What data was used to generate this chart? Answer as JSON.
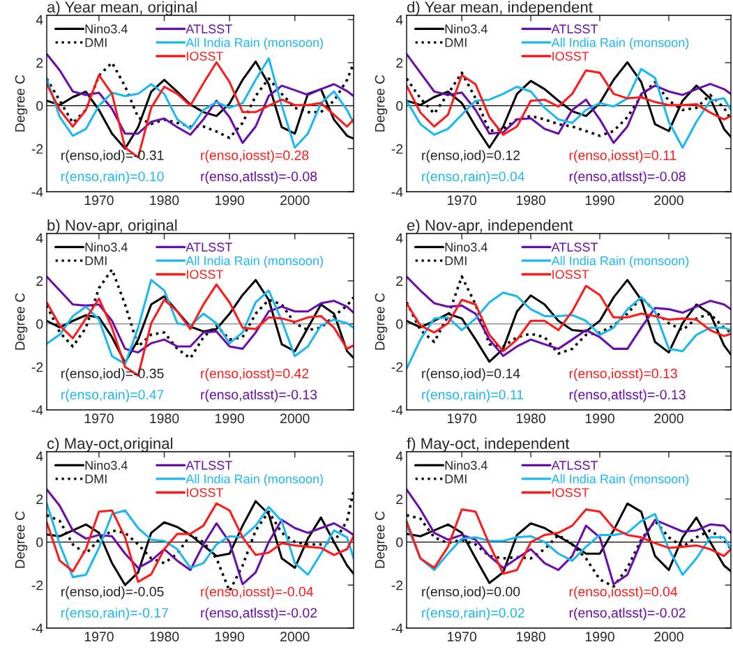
{
  "chart_data": [
    {
      "type": "line",
      "title": "a) Year mean, original",
      "ylabel": "Degree C",
      "xlim": [
        1962,
        2009
      ],
      "xticks": [
        1970,
        1980,
        1990,
        2000
      ],
      "ylim": [
        -4,
        4.2
      ],
      "yticks": [
        -4,
        -2,
        0,
        2,
        4
      ],
      "legend": "top left",
      "grid": false,
      "x": [
        1962,
        1964,
        1966,
        1968,
        1970,
        1972,
        1974,
        1976,
        1978,
        1980,
        1982,
        1984,
        1986,
        1988,
        1990,
        1992,
        1994,
        1996,
        1998,
        2000,
        2002,
        2004,
        2006,
        2008,
        2009
      ],
      "ref_lines": [
        {
          "axis": "y",
          "value": 0,
          "color": "#000000"
        }
      ],
      "annotations": [
        "r(enso,iod)=-0.31",
        "r(enso,iosst)=0.28",
        "r(enso,rain)=0.10",
        "r(enso,atlsst)=-0.08"
      ],
      "series": [
        {
          "name": "Nino3.4",
          "color": "#000000",
          "line_style": "solid",
          "values": [
            0.23,
            0.03,
            0.4,
            0.65,
            -0.2,
            -1.3,
            -2.0,
            -1.0,
            0.65,
            1.2,
            0.65,
            0.05,
            -0.3,
            -0.48,
            0.1,
            1.2,
            2.05,
            1.0,
            -1.0,
            -1.3,
            0.55,
            0.77,
            -0.65,
            -1.4,
            -1.53
          ]
        },
        {
          "name": "DMI",
          "color": "#000000",
          "line_style": "dotted",
          "values": [
            1.26,
            0.23,
            -0.8,
            -0.2,
            1.4,
            2.0,
            0.9,
            -0.55,
            -0.85,
            -0.65,
            -0.8,
            -0.97,
            -0.97,
            -1.2,
            -1.5,
            -0.8,
            0.45,
            1.26,
            0.55,
            -0.1,
            -0.3,
            -0.3,
            0.23,
            1.2,
            1.97
          ]
        },
        {
          "name": "ATLSST",
          "color": "#6a0dad",
          "line_style": "solid",
          "values": [
            2.4,
            1.64,
            0.66,
            0.5,
            0.6,
            -0.15,
            -1.3,
            -1.3,
            -0.75,
            -0.6,
            -1.0,
            -1.35,
            -0.64,
            0.23,
            -0.53,
            -1.73,
            -0.97,
            0.45,
            0.93,
            0.72,
            0.5,
            0.77,
            1.0,
            0.68,
            0.45
          ]
        },
        {
          "name": "All India Rain (monsoon)",
          "color": "#1ab8f0",
          "line_style": "solid",
          "values": [
            1.26,
            -0.53,
            -1.4,
            -1.08,
            0,
            0.6,
            0.45,
            0.55,
            1.0,
            0.55,
            -0.64,
            -1.08,
            -0.2,
            0.17,
            -0.1,
            0.12,
            1.2,
            2.2,
            0,
            -1.95,
            -1.3,
            0.12,
            0.66,
            -0.2,
            -0.8
          ]
        },
        {
          "name": "IOSST",
          "color": "#ff1a1a",
          "line_style": "solid",
          "values": [
            1.0,
            -0.2,
            -0.97,
            -0.2,
            1.42,
            0.55,
            -1.95,
            -2.4,
            -0.1,
            0.88,
            0.55,
            0,
            1.04,
            2.02,
            1.1,
            -0.3,
            -0.3,
            0,
            0.28,
            0.03,
            0.03,
            0.12,
            -0.42,
            -0.97,
            -0.64
          ]
        }
      ]
    },
    {
      "type": "line",
      "title": "d) Year mean, independent",
      "ylabel": "Degree C",
      "xlim": [
        1962,
        2009
      ],
      "xticks": [
        1970,
        1980,
        1990,
        2000
      ],
      "ylim": [
        -4,
        4.2
      ],
      "yticks": [
        -4,
        -2,
        0,
        2,
        4
      ],
      "legend": "top left",
      "grid": false,
      "x": [
        1962,
        1964,
        1966,
        1968,
        1970,
        1972,
        1974,
        1976,
        1978,
        1980,
        1982,
        1984,
        1986,
        1988,
        1990,
        1992,
        1994,
        1996,
        1998,
        2000,
        2002,
        2004,
        2006,
        2008,
        2009
      ],
      "ref_lines": [
        {
          "axis": "y",
          "value": 0,
          "color": "#000000"
        }
      ],
      "annotations": [
        "r(enso,iod)=0.12",
        "r(enso,iosst)=0.11",
        "r(enso,rain)=0.04",
        "r(enso,atlsst)=-0.08"
      ],
      "series": [
        {
          "name": "Nino3.4",
          "color": "#000000",
          "line_style": "solid",
          "values": [
            0.23,
            0.03,
            0.4,
            0.65,
            0.12,
            -0.97,
            -1.95,
            -0.97,
            0.55,
            1.15,
            0.77,
            0.23,
            -0.26,
            -0.48,
            0.12,
            1.2,
            2.02,
            1.1,
            -0.86,
            -1.18,
            0.23,
            0.93,
            0.34,
            -1.08,
            -1.46
          ]
        },
        {
          "name": "DMI",
          "color": "#000000",
          "line_style": "dotted",
          "values": [
            1.26,
            0.34,
            -0.37,
            0.55,
            1.53,
            0.34,
            -1.18,
            -1.08,
            -0.64,
            -0.48,
            -0.64,
            -0.86,
            -0.97,
            -1.18,
            -1.4,
            -1.18,
            -0.53,
            0.45,
            1.1,
            0.23,
            -0.2,
            -0.1,
            0.5,
            -0.1,
            -0.64
          ]
        },
        {
          "name": "ATLSST",
          "color": "#6a0dad",
          "line_style": "solid",
          "values": [
            2.4,
            1.53,
            0.66,
            0.5,
            0.61,
            -0.2,
            -1.3,
            -1.24,
            -0.64,
            -0.59,
            -1.08,
            -1.3,
            -0.2,
            0.28,
            -0.64,
            -1.73,
            -0.97,
            0.55,
            0.93,
            0.66,
            0.5,
            0.77,
            1.01,
            0.77,
            0.55
          ]
        },
        {
          "name": "All India Rain (monsoon)",
          "color": "#1ab8f0",
          "line_style": "solid",
          "values": [
            0.23,
            -0.86,
            -1.35,
            -1.08,
            -0.42,
            0.23,
            0.28,
            0.55,
            0.88,
            0.66,
            -0.1,
            -0.64,
            -0.8,
            -0.2,
            0.12,
            -0.04,
            0.34,
            1.7,
            1.3,
            -0.75,
            -1.95,
            -0.75,
            0.23,
            0.34,
            -0.2
          ]
        },
        {
          "name": "IOSST",
          "color": "#ff1a1a",
          "line_style": "solid",
          "values": [
            0.93,
            -0.32,
            -0.97,
            -0.42,
            1.42,
            0.99,
            -0.53,
            -1.35,
            -0.97,
            0.23,
            0.28,
            -0.04,
            0.55,
            1.64,
            1.53,
            0.55,
            0.34,
            0.39,
            0.17,
            0.03,
            0.03,
            0.07,
            -0.32,
            -0.64,
            -0.48
          ]
        }
      ]
    },
    {
      "type": "line",
      "title": "b) Nov-apr, original",
      "ylabel": "Degree C",
      "xlim": [
        1962,
        2009
      ],
      "xticks": [
        1970,
        1980,
        1990,
        2000
      ],
      "ylim": [
        -4,
        4.2
      ],
      "yticks": [
        -4,
        -2,
        0,
        2,
        4
      ],
      "legend": "top left",
      "grid": false,
      "x": [
        1962,
        1964,
        1966,
        1968,
        1970,
        1972,
        1974,
        1976,
        1978,
        1980,
        1982,
        1984,
        1986,
        1988,
        1990,
        1992,
        1994,
        1996,
        1998,
        2000,
        2002,
        2004,
        2006,
        2008,
        2009
      ],
      "ref_lines": [
        {
          "axis": "y",
          "value": 0,
          "color": "#808080"
        }
      ],
      "annotations": [
        "r(enso,iod)=-0.35",
        "r(enso,iosst)=0.42",
        "r(enso,rain)=0.47",
        "r(enso,atlsst)=-0.13"
      ],
      "series": [
        {
          "name": "Nino3.4",
          "color": "#000000",
          "line_style": "solid",
          "values": [
            0.14,
            -0.16,
            0.14,
            0.4,
            0.3,
            -0.62,
            -1.8,
            -0.73,
            0.9,
            1.28,
            0.58,
            -0.13,
            -0.35,
            -0.24,
            0.47,
            1.34,
            2.04,
            1.12,
            -0.95,
            -1.27,
            -0.18,
            0.9,
            0.47,
            -1.27,
            -1.58
          ]
        },
        {
          "name": "DMI",
          "color": "#000000",
          "line_style": "dotted",
          "values": [
            0.85,
            -0.4,
            -1.05,
            -0.18,
            1.66,
            2.53,
            0.9,
            -1.05,
            -0.5,
            -0.4,
            -1.16,
            -1.6,
            -0.62,
            -0.08,
            -0.73,
            -0.62,
            0.47,
            1.12,
            0.9,
            0.03,
            -0.29,
            -0.18,
            0.36,
            0.85,
            1.23
          ]
        },
        {
          "name": "ATLSST",
          "color": "#6a0dad",
          "line_style": "solid",
          "values": [
            2.2,
            1.55,
            0.9,
            0.85,
            0.9,
            0.14,
            -1.16,
            -1.33,
            -0.9,
            -0.73,
            -1.05,
            -1.05,
            -0.4,
            -0.35,
            -1.05,
            -1.16,
            -0.4,
            0.58,
            0.8,
            0.58,
            0.58,
            0.96,
            1.07,
            0.8,
            0.52
          ]
        },
        {
          "name": "All India Rain (monsoon)",
          "color": "#1ab8f0",
          "line_style": "solid",
          "values": [
            -0.92,
            -0.5,
            0.36,
            0.8,
            0.2,
            -1.5,
            -1.87,
            -0.18,
            2.04,
            1.55,
            0.03,
            -0.08,
            0.47,
            0.03,
            -0.9,
            -0.4,
            1.0,
            1.55,
            0.14,
            -1.5,
            -1.05,
            -0.08,
            0.2,
            0.03,
            -0.18
          ]
        },
        {
          "name": "IOSST",
          "color": "#ff1a1a",
          "line_style": "solid",
          "values": [
            1.0,
            -0.08,
            -0.67,
            0.25,
            1.17,
            -0.18,
            -2.0,
            -2.4,
            0.03,
            1.12,
            0.58,
            -0.24,
            0.9,
            1.83,
            1.0,
            -0.18,
            -0.24,
            0.3,
            0.25,
            0.09,
            0.3,
            0.36,
            -0.18,
            -1.16,
            -1.0
          ]
        }
      ]
    },
    {
      "type": "line",
      "title": "e) Nov-apr, independent",
      "ylabel": "Degree C",
      "xlim": [
        1962,
        2009
      ],
      "xticks": [
        1970,
        1980,
        1990,
        2000
      ],
      "ylim": [
        -4,
        4.2
      ],
      "yticks": [
        -4,
        -2,
        0,
        2,
        4
      ],
      "legend": "top left",
      "grid": false,
      "x": [
        1962,
        1964,
        1966,
        1968,
        1970,
        1972,
        1974,
        1976,
        1978,
        1980,
        1982,
        1984,
        1986,
        1988,
        1990,
        1992,
        1994,
        1996,
        1998,
        2000,
        2002,
        2004,
        2006,
        2008,
        2009
      ],
      "ref_lines": [
        {
          "axis": "y",
          "value": 0,
          "color": "#808080"
        }
      ],
      "annotations": [
        "r(enso,iod)=0.14",
        "r(enso,iosst)=0.13",
        "r(enso,rain)=0.11",
        "r(enso,atlsst)=-0.13"
      ],
      "series": [
        {
          "name": "Nino3.4",
          "color": "#000000",
          "line_style": "solid",
          "values": [
            0.14,
            -0.16,
            0.14,
            0.47,
            0.25,
            -0.73,
            -1.76,
            -1.16,
            0.58,
            1.32,
            0.9,
            0.14,
            -0.29,
            -0.35,
            0.14,
            1.23,
            2.04,
            1.12,
            -0.84,
            -1.33,
            0.03,
            0.9,
            0.47,
            -1.0,
            -1.43
          ]
        },
        {
          "name": "DMI",
          "color": "#000000",
          "line_style": "dotted",
          "values": [
            1.0,
            -0.29,
            -0.84,
            0.36,
            2.2,
            0.9,
            -0.95,
            -1.05,
            -0.62,
            -0.46,
            -0.62,
            -1.38,
            -1.16,
            -0.51,
            -0.4,
            -0.08,
            0.47,
            1.23,
            0.58,
            0.03,
            -0.29,
            0.25,
            0.47,
            -0.18,
            -0.4
          ]
        },
        {
          "name": "ATLSST",
          "color": "#6a0dad",
          "line_style": "solid",
          "values": [
            2.2,
            1.55,
            0.96,
            0.8,
            0.85,
            0.47,
            -0.73,
            -1.49,
            -1.05,
            -0.73,
            -0.95,
            -1.16,
            -0.73,
            -0.29,
            -0.62,
            -1.16,
            -1.16,
            -0.18,
            0.74,
            0.68,
            0.52,
            0.8,
            1.07,
            0.9,
            0.68
          ]
        },
        {
          "name": "All India Rain (monsoon)",
          "color": "#1ab8f0",
          "line_style": "solid",
          "values": [
            -2.09,
            -0.73,
            0.25,
            0.3,
            -0.29,
            0.25,
            1.0,
            1.45,
            1.28,
            0.68,
            0.36,
            0.36,
            0.41,
            0.14,
            -0.51,
            -0.18,
            0.68,
            1.23,
            0.58,
            -1.16,
            -1.27,
            -0.51,
            -0.18,
            -0.18,
            -0.29
          ]
        },
        {
          "name": "IOSST",
          "color": "#ff1a1a",
          "line_style": "solid",
          "values": [
            0.96,
            -0.08,
            -0.4,
            0.03,
            1.12,
            0.9,
            -0.51,
            -1.27,
            -0.73,
            0.14,
            0.14,
            -0.29,
            0.58,
            1.77,
            1.34,
            0.3,
            0.3,
            0.47,
            0.36,
            0.2,
            0.25,
            0.2,
            -0.29,
            -0.57,
            -0.46
          ]
        }
      ]
    },
    {
      "type": "line",
      "title": "c) May-oct,original",
      "ylabel": "Degree C",
      "xlim": [
        1962,
        2009
      ],
      "xticks": [
        1970,
        1980,
        1990,
        2000
      ],
      "ylim": [
        -4,
        4.2
      ],
      "yticks": [
        -4,
        -2,
        0,
        2,
        4
      ],
      "legend": "top left",
      "grid": false,
      "x": [
        1962,
        1964,
        1966,
        1968,
        1970,
        1972,
        1974,
        1976,
        1978,
        1980,
        1982,
        1984,
        1986,
        1988,
        1990,
        1992,
        1994,
        1996,
        1998,
        2000,
        2002,
        2004,
        2006,
        2008,
        2009
      ],
      "ref_lines": [
        {
          "axis": "y",
          "value": 0,
          "color": "#000000"
        }
      ],
      "annotations": [
        "r(enso,iod)=-0.05",
        "r(enso,iosst)=-0.04",
        "r(enso,rain)=-0.17",
        "r(enso,atlsst)=-0.02"
      ],
      "series": [
        {
          "name": "Nino3.4",
          "color": "#000000",
          "line_style": "solid",
          "values": [
            0.35,
            0.27,
            0.54,
            0.82,
            0.43,
            -0.98,
            -2.0,
            -1.41,
            0.43,
            0.92,
            0.7,
            0.33,
            -0.16,
            -0.65,
            -0.54,
            0.76,
            1.9,
            1.3,
            -0.76,
            -1.2,
            0.16,
            1.14,
            0,
            -1.09,
            -1.47
          ]
        },
        {
          "name": "DMI",
          "color": "#000000",
          "line_style": "dotted",
          "values": [
            1.25,
            0.98,
            -0.11,
            -0.54,
            0.11,
            0.54,
            0.43,
            -0.11,
            -0.76,
            -0.98,
            -0.54,
            0.33,
            0,
            -0.76,
            -2.28,
            -1.09,
            0.54,
            1.41,
            0.43,
            0,
            -0.11,
            -0.11,
            0,
            0.98,
            2.39
          ]
        },
        {
          "name": "ATLSST",
          "color": "#6a0dad",
          "line_style": "solid",
          "values": [
            2.45,
            1.68,
            0.54,
            0.16,
            0.33,
            0.27,
            -0.54,
            -1.2,
            -0.87,
            -0.33,
            -0.87,
            -1.3,
            -0.11,
            0.87,
            0,
            -1.96,
            -1.41,
            0,
            1.03,
            0.65,
            0.43,
            0.65,
            0.87,
            0.54,
            0.33
          ]
        },
        {
          "name": "All India Rain (monsoon)",
          "color": "#1ab8f0",
          "line_style": "solid",
          "values": [
            1.8,
            -0.11,
            -1.63,
            -1.52,
            -0.27,
            1.3,
            1.47,
            0.65,
            0.11,
            0.05,
            -0.33,
            -1.2,
            -0.98,
            -0.11,
            0.27,
            0.22,
            0.76,
            1.63,
            0.98,
            -0.98,
            -1.52,
            -0.54,
            0.54,
            0.22,
            -0.76
          ]
        },
        {
          "name": "IOSST",
          "color": "#ff1a1a",
          "line_style": "solid",
          "values": [
            0.92,
            -0.87,
            -1.36,
            -0.33,
            1.41,
            1.47,
            0.22,
            -1.85,
            -1.5,
            -0.33,
            0.38,
            0.38,
            0.76,
            1.8,
            1.47,
            0.22,
            -0.6,
            -0.49,
            -0.05,
            -0.16,
            -0.22,
            -0.27,
            -0.6,
            -0.33,
            0.27
          ]
        }
      ]
    },
    {
      "type": "line",
      "title": "f) May-oct, independent",
      "ylabel": "Degree C",
      "xlim": [
        1962,
        2009
      ],
      "xticks": [
        1970,
        1980,
        1990,
        2000
      ],
      "ylim": [
        -4,
        4.2
      ],
      "yticks": [
        -4,
        -2,
        0,
        2,
        4
      ],
      "legend": "top left",
      "grid": false,
      "x": [
        1962,
        1964,
        1966,
        1968,
        1970,
        1972,
        1974,
        1976,
        1978,
        1980,
        1982,
        1984,
        1986,
        1988,
        1990,
        1992,
        1994,
        1996,
        1998,
        2000,
        2002,
        2004,
        2006,
        2008,
        2009
      ],
      "ref_lines": [
        {
          "axis": "y",
          "value": 0,
          "color": "#000000"
        }
      ],
      "annotations": [
        "r(enso,iod)=0.00",
        "r(enso,iosst)=0.04",
        "r(enso,rain)=0.02",
        "r(enso,atlsst)=-0.02"
      ],
      "series": [
        {
          "name": "Nino3.4",
          "color": "#000000",
          "line_style": "solid",
          "values": [
            0.38,
            0.27,
            0.54,
            0.82,
            0.43,
            -0.76,
            -1.9,
            -1.41,
            0.33,
            0.87,
            0.65,
            0.27,
            -0.11,
            -0.54,
            -0.54,
            0.54,
            1.79,
            1.41,
            -0.65,
            -1.3,
            0.22,
            1.14,
            0,
            -1.09,
            -1.36
          ]
        },
        {
          "name": "DMI",
          "color": "#000000",
          "line_style": "dotted",
          "values": [
            1.25,
            1.09,
            0.22,
            -0.05,
            0.11,
            -0.11,
            -0.65,
            -0.76,
            -0.7,
            -0.76,
            -0.33,
            0.33,
            -0.11,
            -0.76,
            -1.74,
            -2.07,
            -1.2,
            0.11,
            0.98,
            0.22,
            -0.22,
            0.22,
            0.54,
            0.11,
            -0.33
          ]
        },
        {
          "name": "ATLSST",
          "color": "#6a0dad",
          "line_style": "solid",
          "values": [
            2.45,
            1.52,
            0.43,
            0.11,
            0.33,
            0.11,
            -0.65,
            -1.2,
            -0.76,
            -0.33,
            -0.98,
            -1.3,
            -0.65,
            0.76,
            0.22,
            -1.96,
            -1.52,
            0,
            1.03,
            0.76,
            0.49,
            0.54,
            0.82,
            0.76,
            0.43
          ]
        },
        {
          "name": "All India Rain (monsoon)",
          "color": "#1ab8f0",
          "line_style": "solid",
          "values": [
            0.8,
            -0.76,
            -1.3,
            -0.54,
            0.16,
            0.22,
            0.05,
            0.05,
            0.22,
            0.27,
            0,
            -0.54,
            -0.87,
            -0.22,
            0.33,
            0.33,
            0.43,
            0.98,
            1.3,
            -0.33,
            -1.52,
            -0.76,
            0.22,
            0.22,
            -0.33
          ]
        },
        {
          "name": "IOSST",
          "color": "#ff1a1a",
          "line_style": "solid",
          "values": [
            0.97,
            -0.76,
            -1.2,
            -0.22,
            1.52,
            1.41,
            -0.11,
            -1.47,
            -1.3,
            0,
            0.33,
            0.43,
            0.76,
            1.52,
            1.41,
            0.65,
            0.33,
            0.22,
            -0.05,
            -0.27,
            -0.22,
            -0.16,
            -0.33,
            -0.65,
            -0.33
          ]
        }
      ]
    }
  ]
}
